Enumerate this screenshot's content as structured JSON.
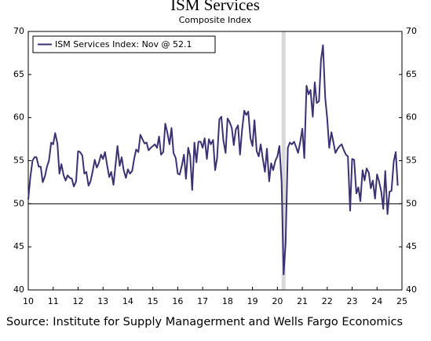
{
  "chart_data": {
    "type": "line",
    "title": "ISM Services",
    "subtitle": "Composite Index",
    "source": "Source: Institute for Supply Managerment and Wells Fargo Economics",
    "xlim": [
      10,
      25
    ],
    "xticks": [
      10,
      11,
      12,
      13,
      14,
      15,
      16,
      17,
      18,
      19,
      20,
      21,
      22,
      23,
      24,
      25
    ],
    "ylim": [
      40,
      70
    ],
    "yticks": [
      40,
      45,
      50,
      55,
      60,
      65,
      70
    ],
    "reference_line": 50,
    "shaded_regions": [
      [
        20.17,
        20.33
      ]
    ],
    "shade_color": "#d9d9d9",
    "legend": "upper left",
    "grid": false,
    "x": [
      10,
      10.08,
      10.17,
      10.25,
      10.33,
      10.42,
      10.5,
      10.58,
      10.67,
      10.75,
      10.83,
      10.92,
      11,
      11.08,
      11.17,
      11.25,
      11.33,
      11.42,
      11.5,
      11.58,
      11.67,
      11.75,
      11.83,
      11.92,
      12,
      12.08,
      12.17,
      12.25,
      12.33,
      12.42,
      12.5,
      12.58,
      12.67,
      12.75,
      12.83,
      12.92,
      13,
      13.08,
      13.17,
      13.25,
      13.33,
      13.42,
      13.5,
      13.58,
      13.67,
      13.75,
      13.83,
      13.92,
      14,
      14.08,
      14.17,
      14.25,
      14.33,
      14.42,
      14.5,
      14.58,
      14.67,
      14.75,
      14.83,
      14.92,
      15,
      15.08,
      15.17,
      15.25,
      15.33,
      15.42,
      15.5,
      15.58,
      15.67,
      15.75,
      15.83,
      15.92,
      16,
      16.08,
      16.17,
      16.25,
      16.33,
      16.42,
      16.5,
      16.58,
      16.67,
      16.75,
      16.83,
      16.92,
      17,
      17.08,
      17.17,
      17.25,
      17.33,
      17.42,
      17.5,
      17.58,
      17.67,
      17.75,
      17.83,
      17.92,
      18,
      18.08,
      18.17,
      18.25,
      18.33,
      18.42,
      18.5,
      18.58,
      18.67,
      18.75,
      18.83,
      18.92,
      19,
      19.08,
      19.17,
      19.25,
      19.33,
      19.42,
      19.5,
      19.58,
      19.67,
      19.75,
      19.83,
      19.92,
      20,
      20.08,
      20.17,
      20.25,
      20.33,
      20.42,
      20.5,
      20.58,
      20.67,
      20.75,
      20.83,
      20.92,
      21,
      21.08,
      21.17,
      21.25,
      21.33,
      21.42,
      21.5,
      21.58,
      21.67,
      21.75,
      21.83,
      21.92,
      22,
      22.08,
      22.17,
      22.25,
      22.33,
      22.42,
      22.5,
      22.58,
      22.67,
      22.75,
      22.83,
      22.92,
      23,
      23.08,
      23.17,
      23.25,
      23.33,
      23.42,
      23.5,
      23.58,
      23.67,
      23.75,
      23.83,
      23.92,
      24,
      24.08,
      24.17,
      24.25,
      24.33,
      24.42,
      24.5,
      24.58,
      24.67,
      24.75,
      24.83
    ],
    "series": [
      {
        "name": "ISM Services Index: Nov @ 52.1",
        "color": "#3b3273",
        "values": [
          50.5,
          53.0,
          55.0,
          55.4,
          55.4,
          54.3,
          54.3,
          52.5,
          53.2,
          54.3,
          55.0,
          57.1,
          56.9,
          58.2,
          57.0,
          53.5,
          54.6,
          53.3,
          52.7,
          53.3,
          53.0,
          52.9,
          52.0,
          52.6,
          56.1,
          56.0,
          55.6,
          53.5,
          53.7,
          52.1,
          52.6,
          53.7,
          55.1,
          54.2,
          54.7,
          55.7,
          55.2,
          56.0,
          54.4,
          53.1,
          53.7,
          52.2,
          54.4,
          56.7,
          54.4,
          55.4,
          53.9,
          53.0,
          54.0,
          53.5,
          53.8,
          55.2,
          56.3,
          56.0,
          58.0,
          57.5,
          57.0,
          57.1,
          56.2,
          56.5,
          56.7,
          56.9,
          56.5,
          57.8,
          55.7,
          56.0,
          59.3,
          58.3,
          56.9,
          58.8,
          55.9,
          55.3,
          53.5,
          53.4,
          54.5,
          55.7,
          52.9,
          56.5,
          55.5,
          51.6,
          57.1,
          54.8,
          57.2,
          57.2,
          56.5,
          57.6,
          55.2,
          57.5,
          56.9,
          57.4,
          53.9,
          55.3,
          59.8,
          60.1,
          57.4,
          55.9,
          59.9,
          59.5,
          58.8,
          56.8,
          58.6,
          59.1,
          55.7,
          58.5,
          60.8,
          60.3,
          60.7,
          57.6,
          56.7,
          59.7,
          56.1,
          55.5,
          56.9,
          55.1,
          53.7,
          56.4,
          52.6,
          54.7,
          53.9,
          55.0,
          55.5,
          56.7,
          52.5,
          41.8,
          45.4,
          56.5,
          57.1,
          56.9,
          57.2,
          56.6,
          55.9,
          57.2,
          58.7,
          55.3,
          63.7,
          62.7,
          63.2,
          60.1,
          64.1,
          61.7,
          61.9,
          66.7,
          68.4,
          62.3,
          59.9,
          56.5,
          58.3,
          57.1,
          55.9,
          56.4,
          56.7,
          56.9,
          56.2,
          55.7,
          55.5,
          49.2,
          55.2,
          55.1,
          51.2,
          51.9,
          50.3,
          53.9,
          52.7,
          54.1,
          53.6,
          51.8,
          52.7,
          50.6,
          53.4,
          52.6,
          51.4,
          49.4,
          53.8,
          48.8,
          51.4,
          51.5,
          54.9,
          56.0,
          52.1
        ]
      }
    ]
  }
}
